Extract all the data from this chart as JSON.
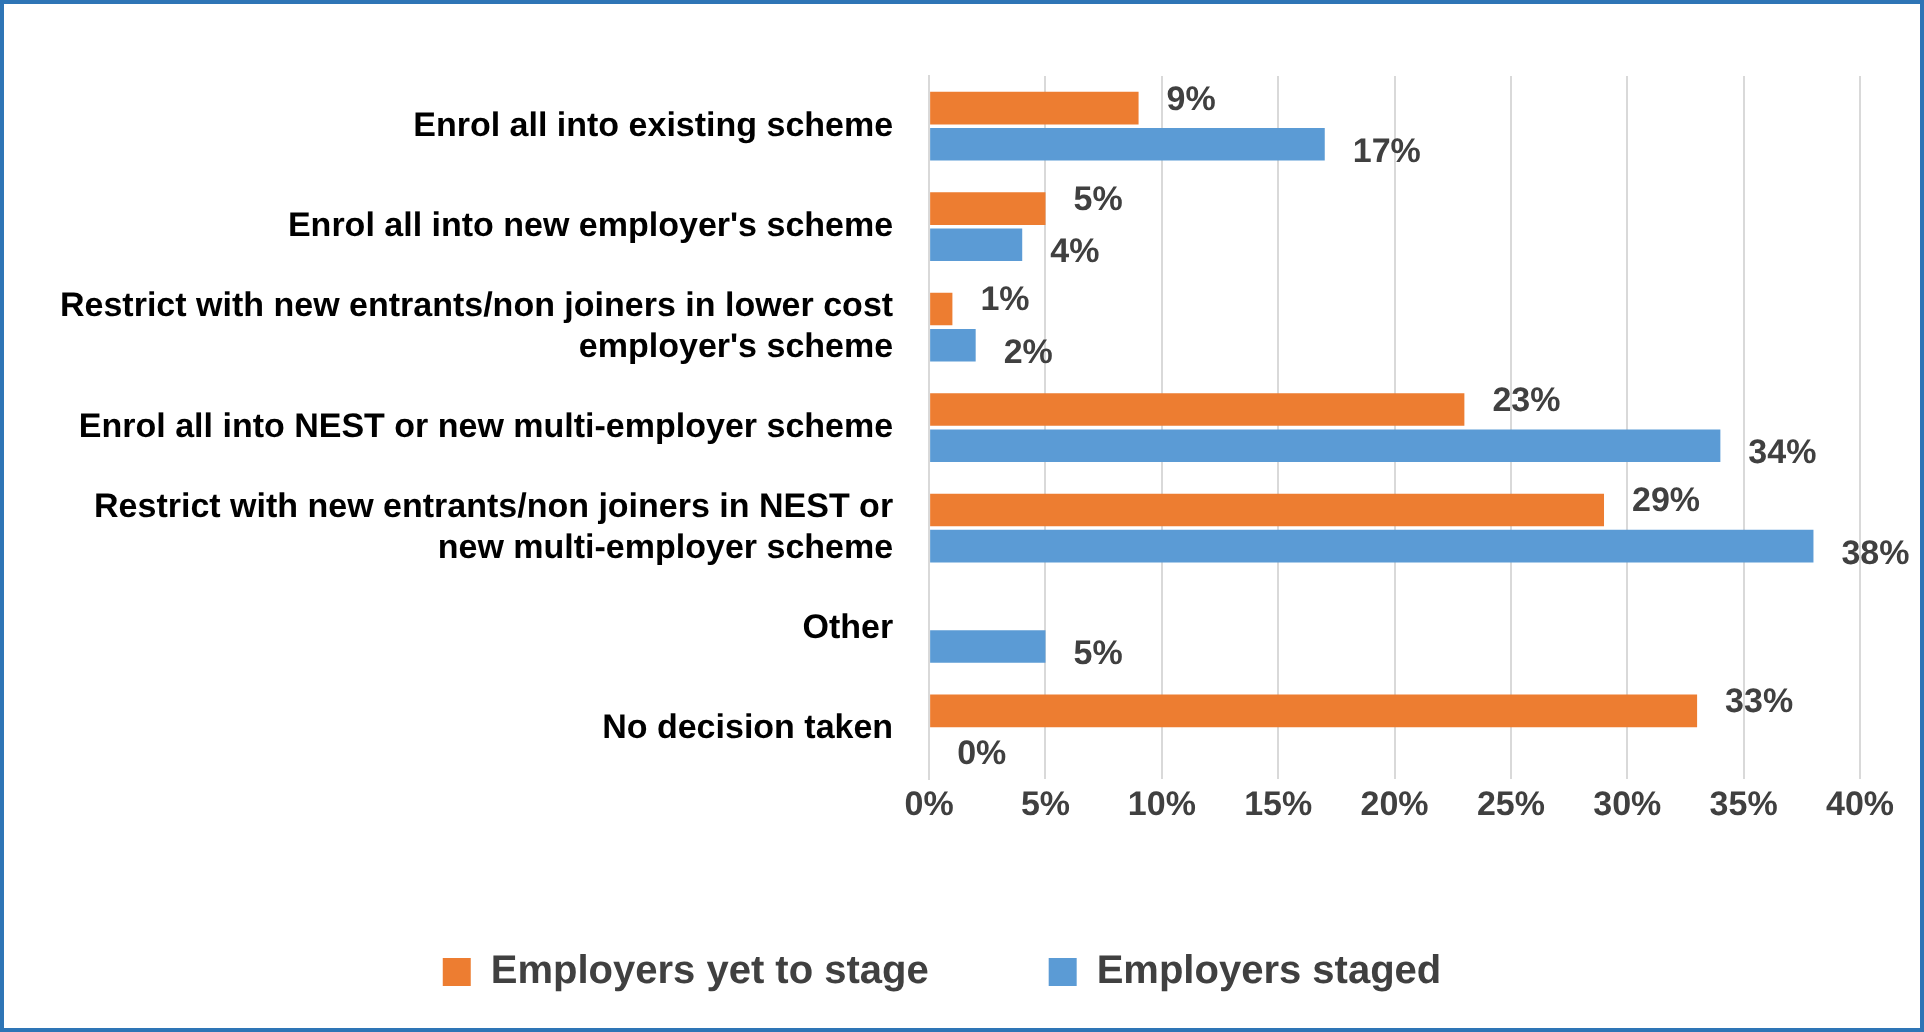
{
  "chart_data": {
    "type": "bar",
    "orientation": "horizontal",
    "categories": [
      "Enrol all into existing scheme",
      "Enrol all into new employer's scheme",
      "Restrict with new entrants/non joiners in lower cost employer's scheme",
      "Enrol all into NEST or new multi-employer scheme",
      "Restrict with new entrants/non joiners in NEST or new multi-employer scheme",
      "Other",
      "No decision taken"
    ],
    "series": [
      {
        "name": "Employers yet to stage",
        "color": "#ed7d31",
        "values": [
          9,
          5,
          1,
          23,
          29,
          null,
          33
        ],
        "value_labels": [
          "9%",
          "5%",
          "1%",
          "23%",
          "29%",
          null,
          "33%"
        ]
      },
      {
        "name": "Employers staged",
        "color": "#5b9bd5",
        "values": [
          17,
          4,
          2,
          34,
          38,
          5,
          0
        ],
        "value_labels": [
          "17%",
          "4%",
          "2%",
          "34%",
          "38%",
          "5%",
          "0%"
        ]
      }
    ],
    "xlim": [
      0,
      40
    ],
    "xticks": [
      {
        "value": 0,
        "label": "0%"
      },
      {
        "value": 5,
        "label": "5%"
      },
      {
        "value": 10,
        "label": "10%"
      },
      {
        "value": 15,
        "label": "15%"
      },
      {
        "value": 20,
        "label": "20%"
      },
      {
        "value": 25,
        "label": "25%"
      },
      {
        "value": 30,
        "label": "30%"
      },
      {
        "value": 35,
        "label": "35%"
      },
      {
        "value": 40,
        "label": "40%"
      }
    ],
    "grid": "x",
    "legend": "bottom"
  }
}
